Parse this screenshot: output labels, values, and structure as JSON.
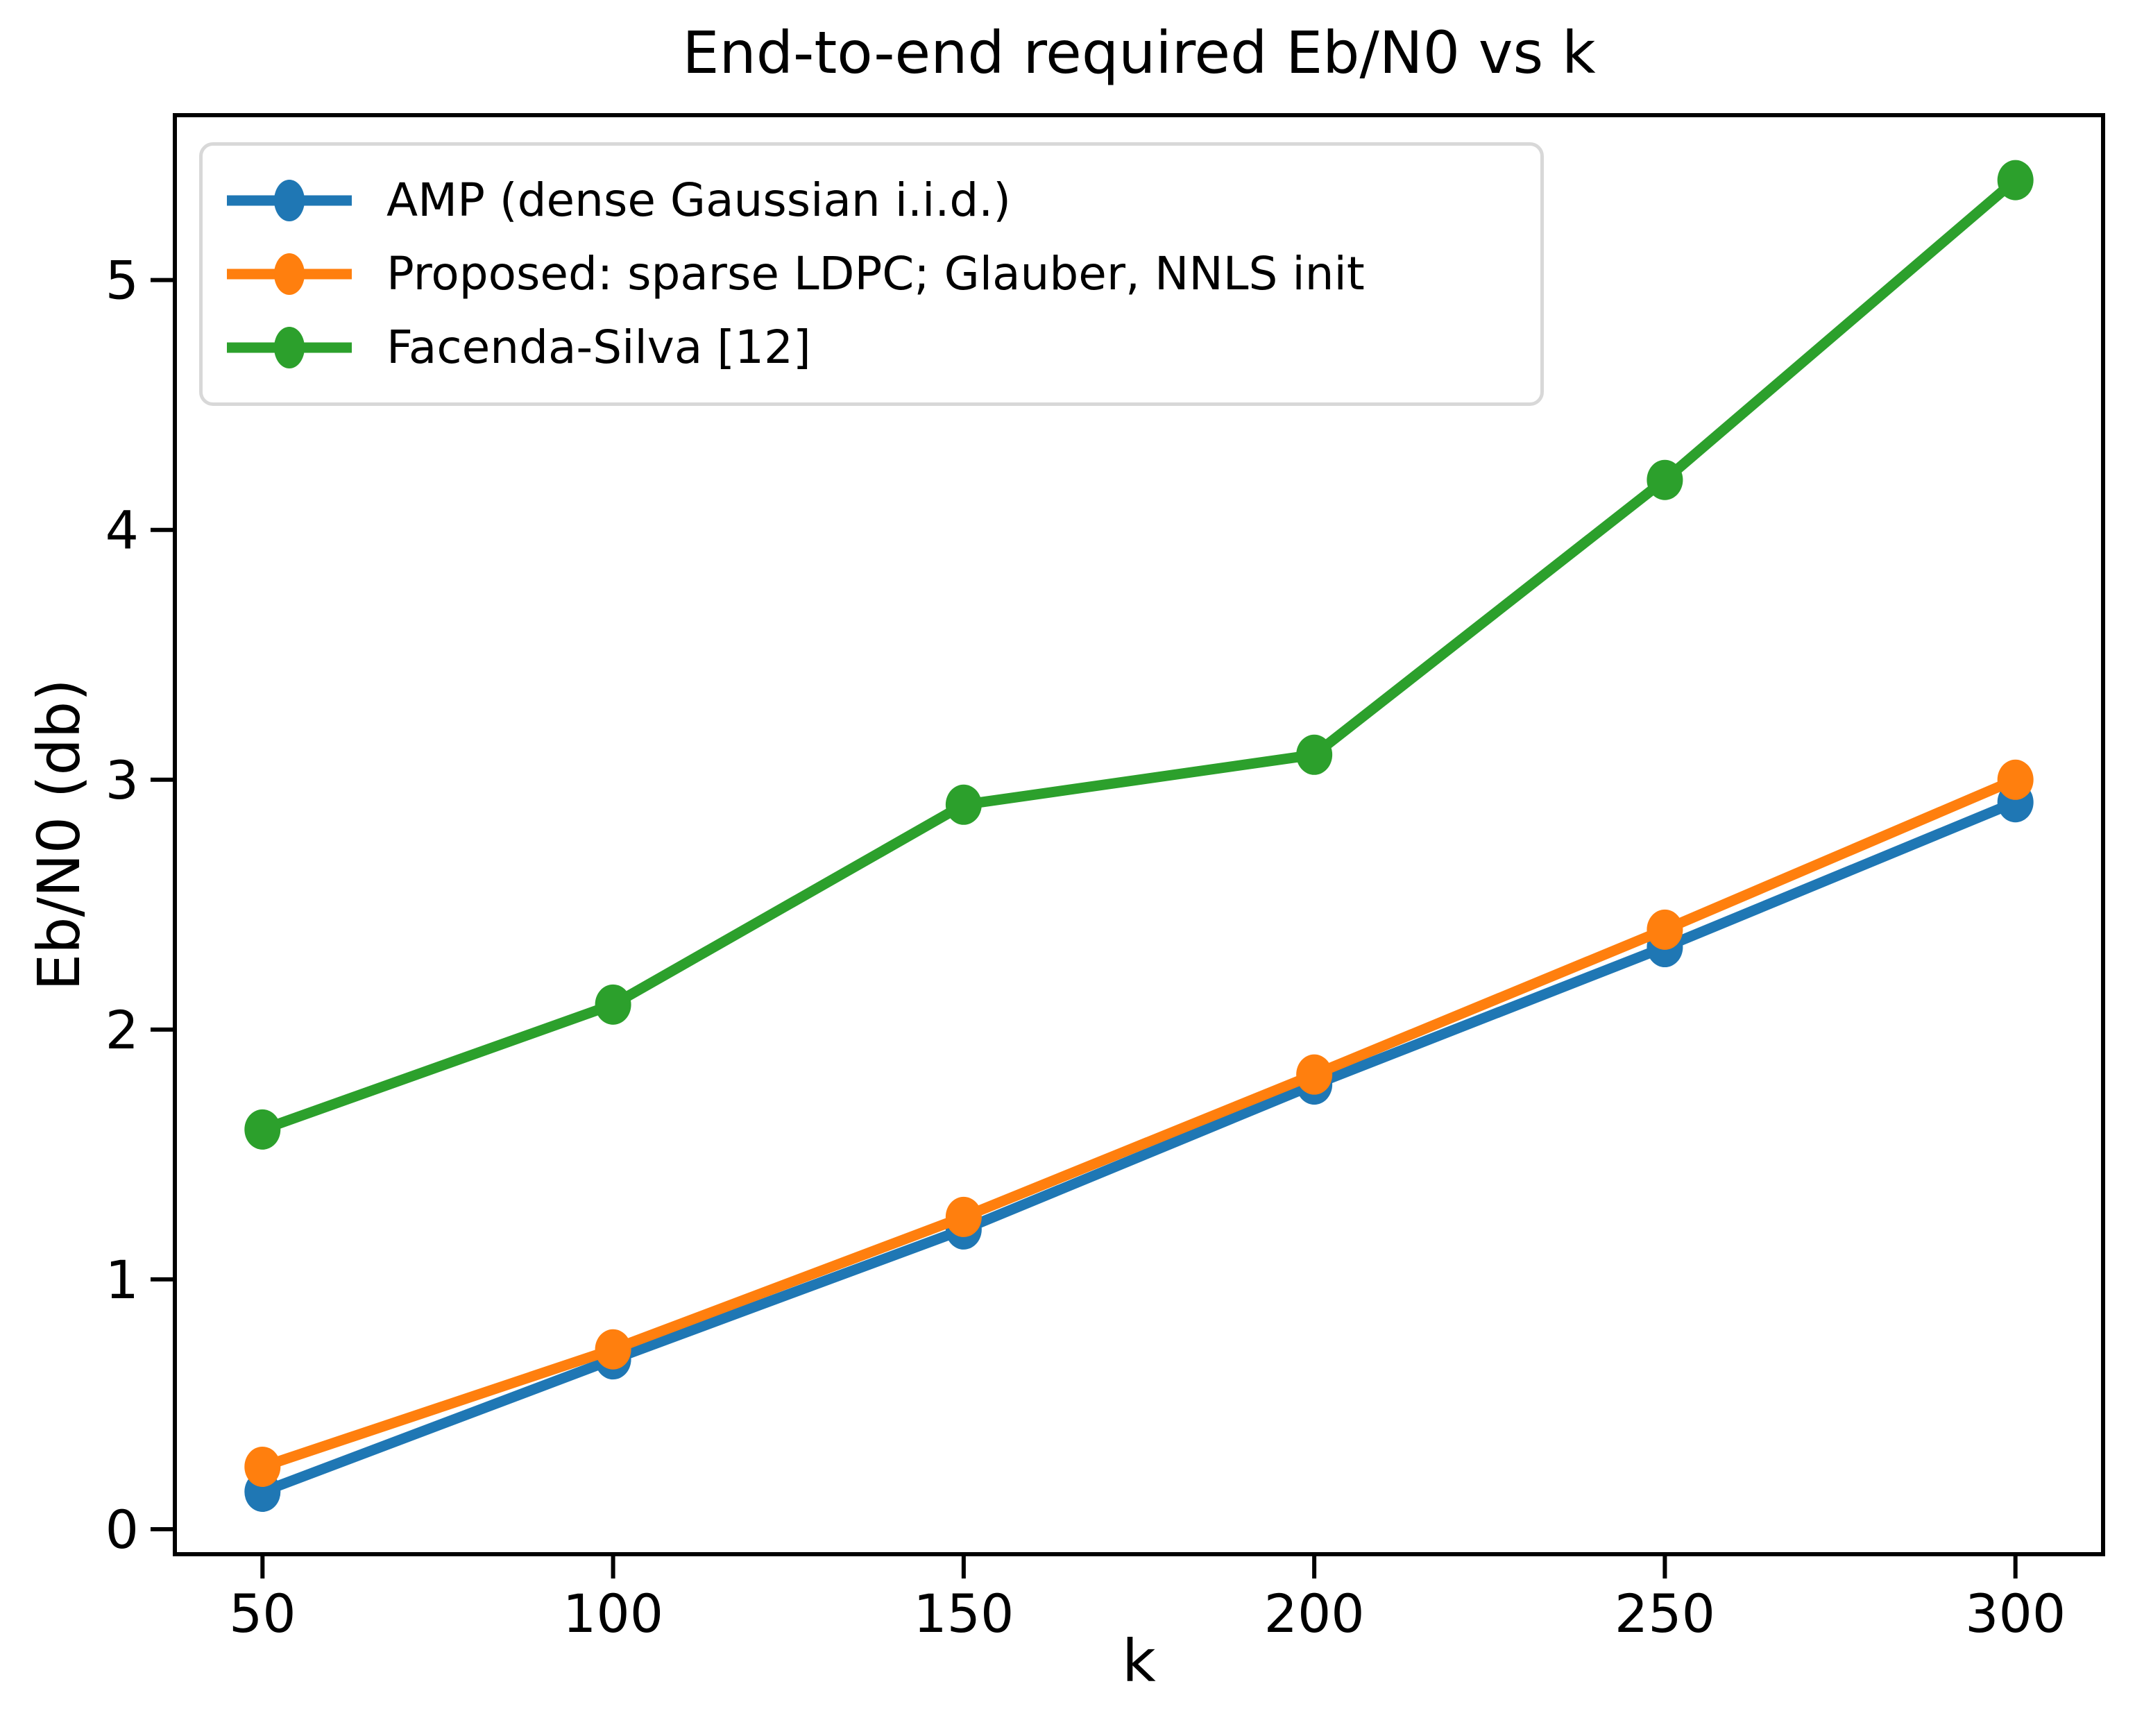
{
  "figure": {
    "background": "#ffffff"
  },
  "chart_data": {
    "type": "line",
    "title": "End-to-end required Eb/N0 vs k",
    "xlabel": "k",
    "ylabel": "Eb/N0 (db)",
    "x": [
      50,
      100,
      150,
      200,
      250,
      300
    ],
    "series": [
      {
        "name": "AMP (dense Gaussian i.i.d.)",
        "color": "#1f77b4",
        "marker": "circle",
        "values": [
          0.15,
          0.68,
          1.2,
          1.78,
          2.33,
          2.91
        ]
      },
      {
        "name": "Proposed: sparse LDPC; Glauber, NNLS init",
        "color": "#ff7f0e",
        "marker": "circle",
        "values": [
          0.25,
          0.72,
          1.25,
          1.82,
          2.4,
          3.0
        ]
      },
      {
        "name": "Facenda-Silva [12]",
        "color": "#2ca02c",
        "marker": "circle",
        "values": [
          1.6,
          2.1,
          2.9,
          3.1,
          4.2,
          5.4
        ]
      }
    ],
    "xticks": [
      "50",
      "100",
      "150",
      "200",
      "250",
      "300"
    ],
    "yticks": [
      "0",
      "1",
      "2",
      "3",
      "4",
      "5"
    ],
    "xlim": [
      37.5,
      312.5
    ],
    "ylim": [
      -0.1,
      5.66
    ],
    "legend_position": "upper left",
    "grid": false,
    "axis_color": "#000000",
    "line_width": 15,
    "marker_rx": 26,
    "marker_ry": 29
  }
}
